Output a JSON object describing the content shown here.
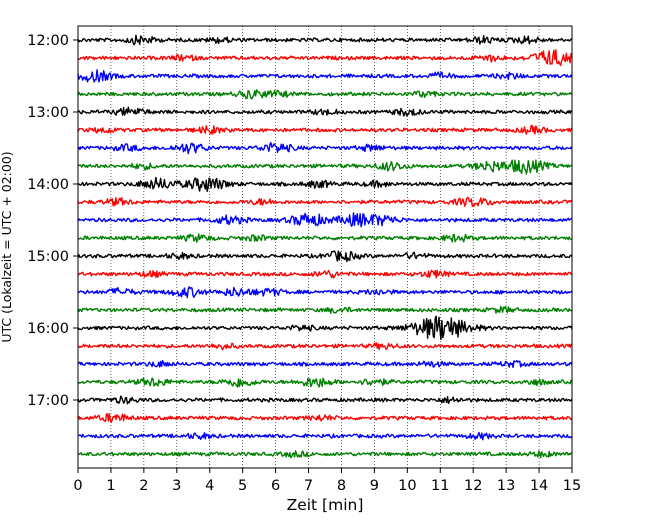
{
  "chart_data": {
    "type": "line",
    "title": "",
    "xlabel": "Zeit  [min]",
    "ylabel": "UTC (Lokalzeit = UTC + 02:00)",
    "xlim": [
      0,
      15
    ],
    "x_ticks": [
      0,
      1,
      2,
      3,
      4,
      5,
      6,
      7,
      8,
      9,
      10,
      11,
      12,
      13,
      14,
      15
    ],
    "x_tick_labels": [
      "0",
      "1",
      "2",
      "3",
      "4",
      "5",
      "6",
      "7",
      "8",
      "9",
      "10",
      "11",
      "12",
      "13",
      "14",
      "15"
    ],
    "y_ticks": [
      "12:00",
      "13:00",
      "14:00",
      "15:00",
      "16:00",
      "17:00"
    ],
    "grid": "vertical dotted",
    "color_cycle": [
      "#000000",
      "#ff0000",
      "#0000ff",
      "#008000"
    ],
    "traces": [
      {
        "start": "12:00",
        "events": [
          [
            1.9,
            0.5
          ],
          [
            4.3,
            0.3
          ],
          [
            12.3,
            0.4
          ],
          [
            13.6,
            0.4
          ]
        ]
      },
      {
        "start": "12:15",
        "events": [
          [
            14.4,
            1.0
          ],
          [
            12.5,
            0.35
          ],
          [
            3.2,
            0.3
          ]
        ]
      },
      {
        "start": "12:30",
        "events": [
          [
            0.5,
            0.7
          ],
          [
            11.0,
            0.3
          ],
          [
            13.1,
            0.3
          ]
        ]
      },
      {
        "start": "12:45",
        "events": [
          [
            5.3,
            0.5
          ],
          [
            6.1,
            0.3
          ],
          [
            10.5,
            0.3
          ]
        ]
      },
      {
        "start": "13:00",
        "events": [
          [
            1.6,
            0.5
          ],
          [
            10.0,
            0.4
          ],
          [
            7.5,
            0.3
          ]
        ]
      },
      {
        "start": "13:15",
        "events": [
          [
            4.0,
            0.4
          ],
          [
            13.8,
            0.4
          ],
          [
            0.8,
            0.3
          ]
        ]
      },
      {
        "start": "13:30",
        "events": [
          [
            3.4,
            0.6
          ],
          [
            6.0,
            0.6
          ],
          [
            1.5,
            0.35
          ],
          [
            8.9,
            0.35
          ]
        ]
      },
      {
        "start": "13:45",
        "events": [
          [
            9.5,
            0.5
          ],
          [
            12.5,
            0.6
          ],
          [
            13.6,
            0.9
          ],
          [
            2.0,
            0.3
          ]
        ]
      },
      {
        "start": "14:00",
        "events": [
          [
            2.4,
            0.7
          ],
          [
            3.9,
            0.9
          ],
          [
            7.3,
            0.4
          ],
          [
            9.1,
            0.3
          ]
        ]
      },
      {
        "start": "14:15",
        "events": [
          [
            1.2,
            0.4
          ],
          [
            11.8,
            0.4
          ],
          [
            12.3,
            0.3
          ],
          [
            5.6,
            0.3
          ]
        ]
      },
      {
        "start": "14:30",
        "events": [
          [
            4.6,
            0.5
          ],
          [
            7.0,
            0.8
          ],
          [
            8.5,
            0.8
          ],
          [
            9.3,
            0.5
          ]
        ]
      },
      {
        "start": "14:45",
        "events": [
          [
            3.6,
            0.4
          ],
          [
            5.4,
            0.3
          ],
          [
            11.5,
            0.4
          ]
        ]
      },
      {
        "start": "15:00",
        "events": [
          [
            8.0,
            0.6
          ],
          [
            10.2,
            0.3
          ],
          [
            3.1,
            0.3
          ]
        ]
      },
      {
        "start": "15:15",
        "events": [
          [
            7.6,
            0.4
          ],
          [
            10.8,
            0.4
          ],
          [
            2.2,
            0.3
          ]
        ]
      },
      {
        "start": "15:30",
        "events": [
          [
            1.3,
            0.4
          ],
          [
            3.3,
            0.6
          ],
          [
            4.8,
            0.5
          ],
          [
            5.8,
            0.4
          ],
          [
            9.1,
            0.3
          ]
        ]
      },
      {
        "start": "15:45",
        "events": [
          [
            7.9,
            0.3
          ],
          [
            12.9,
            0.3
          ]
        ]
      },
      {
        "start": "16:00",
        "events": [
          [
            11.0,
            1.6
          ],
          [
            6.8,
            0.3
          ]
        ]
      },
      {
        "start": "16:15",
        "events": [
          [
            4.4,
            0.3
          ],
          [
            9.3,
            0.3
          ]
        ]
      },
      {
        "start": "16:30",
        "events": [
          [
            2.5,
            0.3
          ],
          [
            10.7,
            0.3
          ],
          [
            13.2,
            0.3
          ]
        ]
      },
      {
        "start": "16:45",
        "events": [
          [
            2.3,
            0.5
          ],
          [
            4.9,
            0.6
          ],
          [
            7.2,
            0.6
          ],
          [
            9.0,
            0.4
          ],
          [
            13.9,
            0.3
          ]
        ]
      },
      {
        "start": "17:00",
        "events": [
          [
            1.4,
            0.35
          ],
          [
            11.3,
            0.3
          ]
        ]
      },
      {
        "start": "17:15",
        "events": [
          [
            1.1,
            0.5
          ],
          [
            7.4,
            0.3
          ]
        ]
      },
      {
        "start": "17:30",
        "events": [
          [
            3.7,
            0.3
          ],
          [
            12.2,
            0.3
          ]
        ]
      },
      {
        "start": "17:45",
        "events": [
          [
            6.6,
            0.3
          ],
          [
            14.1,
            0.3
          ]
        ]
      }
    ]
  }
}
